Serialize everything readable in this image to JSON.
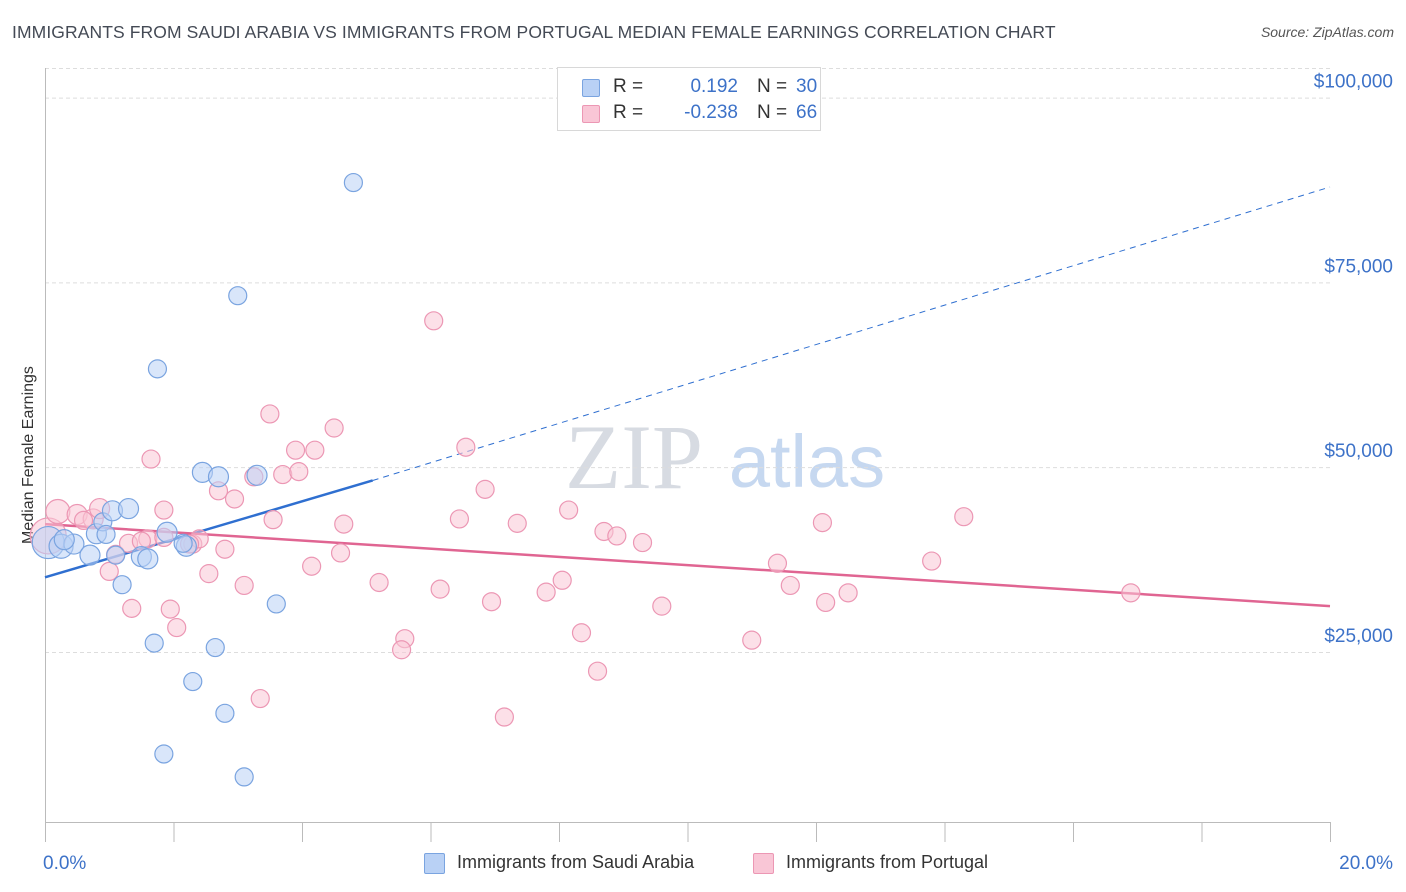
{
  "header": {
    "title": "IMMIGRANTS FROM SAUDI ARABIA VS IMMIGRANTS FROM PORTUGAL MEDIAN FEMALE EARNINGS CORRELATION CHART",
    "source": "Source: ZipAtlas.com"
  },
  "watermark": {
    "zip": "ZIP",
    "atlas": "atlas"
  },
  "stats_legend": {
    "r_label": "R =",
    "n_label": "N =",
    "rows": [
      {
        "r": "0.192",
        "n": "30"
      },
      {
        "r": "-0.238",
        "n": "66"
      }
    ]
  },
  "colors": {
    "blue_fill": "#b9d1f5",
    "blue_stroke": "#7aa4e0",
    "blue_line": "#2f6fd0",
    "pink_fill": "#f9c6d6",
    "pink_stroke": "#ec97b4",
    "pink_line": "#e06592",
    "axis_text": "#3d72c8",
    "grid": "#dddddd"
  },
  "chart_data": {
    "type": "scatter",
    "title": "IMMIGRANTS FROM SAUDI ARABIA VS IMMIGRANTS FROM PORTUGAL MEDIAN FEMALE EARNINGS CORRELATION CHART",
    "xlabel": "",
    "ylabel": "Median Female Earnings",
    "xlim": [
      0,
      20
    ],
    "ylim": [
      2000,
      104000
    ],
    "x_tick_labels": [
      "0.0%",
      "20.0%"
    ],
    "y_ticks": [
      25000,
      50000,
      75000,
      100000
    ],
    "y_tick_labels": [
      "$25,000",
      "$50,000",
      "$75,000",
      "$100,000"
    ],
    "grid": true,
    "legend_position": "bottom",
    "series": [
      {
        "name": "Immigrants from Saudi Arabia",
        "color": "blue",
        "r": 0.192,
        "n": 30,
        "trend": {
          "x0": 0,
          "y0": 35100,
          "x1": 5.1,
          "y1": 48200,
          "dash_to_x": 20,
          "dash_to_y": 87900
        },
        "points": [
          [
            0.05,
            39800,
            16
          ],
          [
            0.25,
            39300,
            12
          ],
          [
            0.45,
            39600,
            10
          ],
          [
            0.7,
            38100,
            10
          ],
          [
            0.8,
            41000,
            10
          ],
          [
            0.9,
            42600,
            9
          ],
          [
            0.95,
            40900,
            9
          ],
          [
            1.1,
            38100,
            9
          ],
          [
            1.05,
            44100,
            10
          ],
          [
            1.3,
            44400,
            10
          ],
          [
            1.5,
            37900,
            10
          ],
          [
            1.6,
            37600,
            10
          ],
          [
            1.2,
            34100,
            9
          ],
          [
            1.7,
            26200,
            9
          ],
          [
            1.9,
            41200,
            10
          ],
          [
            2.2,
            39300,
            10
          ],
          [
            2.45,
            49300,
            10
          ],
          [
            2.7,
            48700,
            10
          ],
          [
            3.3,
            48900,
            10
          ],
          [
            2.65,
            25600,
            9
          ],
          [
            2.3,
            21000,
            9
          ],
          [
            2.8,
            16700,
            9
          ],
          [
            1.85,
            11200,
            9
          ],
          [
            3.1,
            8100,
            9
          ],
          [
            3.6,
            31500,
            9
          ],
          [
            1.75,
            63300,
            9
          ],
          [
            3.0,
            73200,
            9
          ],
          [
            4.8,
            88500,
            9
          ],
          [
            0.3,
            40200,
            10
          ],
          [
            2.15,
            39700,
            9
          ]
        ]
      },
      {
        "name": "Immigrants from Portugal",
        "color": "pink",
        "r": -0.238,
        "n": 66,
        "trend": {
          "x0": 0,
          "y0": 42300,
          "x1": 20,
          "y1": 31200
        },
        "points": [
          [
            0.05,
            40700,
            18
          ],
          [
            0.2,
            44000,
            12
          ],
          [
            0.5,
            43600,
            10
          ],
          [
            0.75,
            43000,
            10
          ],
          [
            0.85,
            44400,
            10
          ],
          [
            1.1,
            38200,
            9
          ],
          [
            1.3,
            39700,
            9
          ],
          [
            1.0,
            35900,
            9
          ],
          [
            1.35,
            30900,
            9
          ],
          [
            1.6,
            40300,
            9
          ],
          [
            1.65,
            51100,
            9
          ],
          [
            1.85,
            40500,
            9
          ],
          [
            1.85,
            44200,
            9
          ],
          [
            1.95,
            30800,
            9
          ],
          [
            2.05,
            28300,
            9
          ],
          [
            2.3,
            39600,
            9
          ],
          [
            2.4,
            40300,
            9
          ],
          [
            2.55,
            35600,
            9
          ],
          [
            2.7,
            46800,
            9
          ],
          [
            2.8,
            38900,
            9
          ],
          [
            2.95,
            45700,
            9
          ],
          [
            3.1,
            34000,
            9
          ],
          [
            3.25,
            48700,
            9
          ],
          [
            3.5,
            57200,
            9
          ],
          [
            3.55,
            42900,
            9
          ],
          [
            3.7,
            49000,
            9
          ],
          [
            3.9,
            52300,
            9
          ],
          [
            3.95,
            49400,
            9
          ],
          [
            4.15,
            36600,
            9
          ],
          [
            4.2,
            52300,
            9
          ],
          [
            4.5,
            55300,
            9
          ],
          [
            4.6,
            38400,
            9
          ],
          [
            4.65,
            42300,
            9
          ],
          [
            5.2,
            34400,
            9
          ],
          [
            5.6,
            26800,
            9
          ],
          [
            5.55,
            25300,
            9
          ],
          [
            6.05,
            69800,
            9
          ],
          [
            6.15,
            33500,
            9
          ],
          [
            6.45,
            43000,
            9
          ],
          [
            6.55,
            52700,
            9
          ],
          [
            6.85,
            47000,
            9
          ],
          [
            6.95,
            31800,
            9
          ],
          [
            7.15,
            16200,
            9
          ],
          [
            7.35,
            42400,
            9
          ],
          [
            7.8,
            33100,
            9
          ],
          [
            8.05,
            34700,
            9
          ],
          [
            8.15,
            44200,
            9
          ],
          [
            8.35,
            27600,
            9
          ],
          [
            8.6,
            22400,
            9
          ],
          [
            8.7,
            41300,
            9
          ],
          [
            8.9,
            40700,
            9
          ],
          [
            9.3,
            39800,
            9
          ],
          [
            9.6,
            31200,
            9
          ],
          [
            11.0,
            26600,
            9
          ],
          [
            11.4,
            37000,
            9
          ],
          [
            11.6,
            34000,
            9
          ],
          [
            12.1,
            42500,
            9
          ],
          [
            12.15,
            31700,
            9
          ],
          [
            12.5,
            33000,
            9
          ],
          [
            13.8,
            37300,
            9
          ],
          [
            14.3,
            43300,
            9
          ],
          [
            16.9,
            33000,
            9
          ],
          [
            1.5,
            40000,
            9
          ],
          [
            3.35,
            18700,
            9
          ],
          [
            0.6,
            42800,
            9
          ],
          [
            2.25,
            39600,
            9
          ]
        ]
      }
    ]
  }
}
